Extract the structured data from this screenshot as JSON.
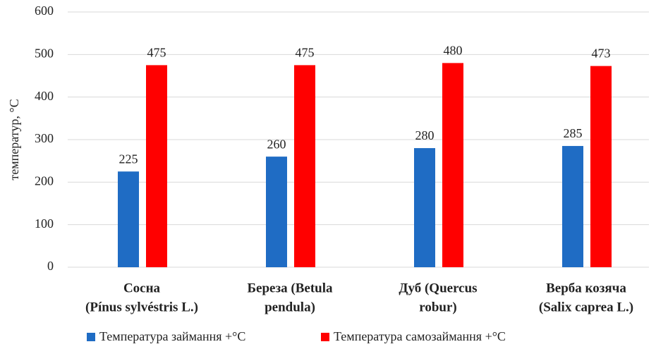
{
  "chart_data": {
    "type": "bar",
    "y_label": "температур, °C",
    "categories": [
      [
        "Сосна",
        "(Pínus sylvéstris L.)"
      ],
      [
        "Береза (Betula",
        "pendula)"
      ],
      [
        "Дуб (Quercus",
        "robur)"
      ],
      [
        "Верба козяча",
        "(Salix caprea L.)"
      ]
    ],
    "series": [
      {
        "name": "Температура займання +°C",
        "color": "#1f6cc4",
        "values": [
          225,
          260,
          280,
          285
        ]
      },
      {
        "name": "Температура самозаймання +°C",
        "color": "#ff0000",
        "values": [
          475,
          475,
          480,
          473
        ]
      }
    ],
    "ylim": [
      0,
      600
    ],
    "yticks": [
      0,
      100,
      200,
      300,
      400,
      500,
      600
    ],
    "grid": true,
    "legend": "bottom"
  }
}
